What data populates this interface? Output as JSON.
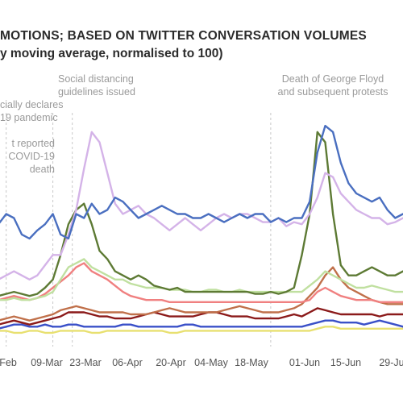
{
  "title": "MOTIONS; BASED ON TWITTER CONVERSATION VOLUMES",
  "subtitle": "y moving average, normalised to 100)",
  "chart_data": {
    "type": "line",
    "xlabel": "",
    "ylabel": "",
    "ylim": [
      0,
      118
    ],
    "grid": false,
    "x_ticks": [
      "Feb",
      "09-Mar",
      "23-Mar",
      "06-Apr",
      "20-Apr",
      "04-May",
      "18-May",
      "01-Jun",
      "15-Jun",
      "29-Ju"
    ],
    "annotations": [
      {
        "lines": [
          "cially declares",
          "19 pandemic"
        ],
        "at": 2
      },
      {
        "lines": [
          "t reported",
          "COVID-19",
          "death"
        ],
        "at": 14
      },
      {
        "lines": [
          "Social distancing",
          "guidelines issued"
        ],
        "at": 19
      },
      {
        "lines": [
          "Death of George Floyd",
          "and subsequent protests"
        ],
        "at": 70
      }
    ],
    "x": [
      0,
      2,
      4,
      6,
      8,
      10,
      12,
      14,
      16,
      18,
      20,
      22,
      24,
      26,
      28,
      30,
      32,
      34,
      36,
      38,
      40,
      42,
      44,
      46,
      48,
      50,
      52,
      54,
      56,
      58,
      60,
      62,
      64,
      66,
      68,
      70,
      72,
      74,
      76,
      78,
      80,
      82,
      84,
      86,
      88,
      90,
      92,
      94,
      96,
      98,
      100,
      102,
      104
    ],
    "series": [
      {
        "color": "#4a6fc0",
        "values": [
          55,
          60,
          58,
          50,
          48,
          52,
          55,
          60,
          50,
          48,
          60,
          58,
          65,
          60,
          62,
          68,
          66,
          62,
          58,
          60,
          62,
          64,
          62,
          60,
          60,
          58,
          58,
          60,
          58,
          56,
          58,
          60,
          58,
          60,
          60,
          56,
          58,
          56,
          58,
          58,
          66,
          90,
          103,
          100,
          85,
          75,
          70,
          68,
          66,
          68,
          62,
          58,
          60
        ]
      },
      {
        "color": "#d4b3e8",
        "values": [
          28,
          30,
          32,
          30,
          28,
          30,
          35,
          40,
          40,
          50,
          62,
          82,
          100,
          95,
          80,
          65,
          60,
          62,
          64,
          60,
          58,
          55,
          52,
          55,
          58,
          55,
          52,
          55,
          58,
          60,
          58,
          60,
          60,
          58,
          56,
          56,
          58,
          54,
          56,
          55,
          60,
          68,
          80,
          78,
          70,
          66,
          62,
          60,
          58,
          58,
          55,
          56,
          58
        ]
      },
      {
        "color": "#5d7a34",
        "values": [
          20,
          21,
          22,
          21,
          20,
          21,
          24,
          28,
          40,
          55,
          62,
          65,
          55,
          42,
          38,
          32,
          30,
          28,
          30,
          28,
          25,
          24,
          23,
          24,
          22,
          22,
          22,
          22,
          22,
          22,
          22,
          22,
          22,
          21,
          21,
          22,
          21,
          22,
          24,
          40,
          60,
          100,
          95,
          60,
          35,
          30,
          30,
          32,
          34,
          32,
          30,
          30,
          32
        ]
      },
      {
        "color": "#c0e0a0",
        "values": [
          18,
          18,
          19,
          18,
          18,
          19,
          20,
          22,
          28,
          34,
          36,
          38,
          34,
          32,
          30,
          28,
          28,
          26,
          25,
          24,
          24,
          24,
          23,
          23,
          23,
          22,
          22,
          23,
          23,
          22,
          22,
          23,
          22,
          22,
          22,
          22,
          22,
          22,
          22,
          22,
          25,
          28,
          32,
          30,
          28,
          26,
          24,
          24,
          25,
          24,
          23,
          22,
          22
        ]
      },
      {
        "color": "#f08080",
        "values": [
          18,
          19,
          20,
          19,
          18,
          19,
          21,
          24,
          27,
          30,
          34,
          36,
          32,
          30,
          28,
          25,
          22,
          20,
          19,
          18,
          18,
          18,
          17,
          17,
          17,
          17,
          17,
          17,
          17,
          17,
          17,
          17,
          17,
          17,
          17,
          17,
          17,
          17,
          17,
          17,
          18,
          22,
          24,
          22,
          20,
          19,
          18,
          18,
          18,
          17,
          17,
          17,
          17
        ]
      },
      {
        "color": "#c0704a",
        "values": [
          8,
          9,
          10,
          9,
          8,
          9,
          10,
          11,
          13,
          14,
          15,
          14,
          13,
          12,
          12,
          12,
          12,
          11,
          11,
          11,
          12,
          13,
          14,
          13,
          12,
          12,
          12,
          12,
          12,
          13,
          14,
          15,
          14,
          13,
          12,
          12,
          12,
          13,
          14,
          16,
          20,
          24,
          30,
          34,
          28,
          24,
          22,
          20,
          18,
          17,
          16,
          16,
          16
        ]
      },
      {
        "color": "#8b1a1a",
        "values": [
          6,
          7,
          8,
          7,
          6,
          7,
          8,
          9,
          10,
          12,
          12,
          12,
          11,
          10,
          10,
          9,
          9,
          9,
          10,
          11,
          12,
          11,
          10,
          10,
          10,
          10,
          11,
          12,
          12,
          11,
          10,
          10,
          10,
          9,
          9,
          9,
          9,
          10,
          11,
          10,
          12,
          14,
          13,
          12,
          11,
          11,
          11,
          11,
          11,
          10,
          11,
          11,
          11
        ]
      },
      {
        "color": "#3a50c8",
        "values": [
          4,
          5,
          6,
          6,
          5,
          5,
          6,
          5,
          5,
          6,
          6,
          5,
          5,
          5,
          5,
          5,
          6,
          6,
          5,
          5,
          5,
          5,
          5,
          5,
          6,
          6,
          5,
          5,
          5,
          5,
          5,
          5,
          5,
          5,
          5,
          5,
          5,
          5,
          5,
          5,
          6,
          7,
          8,
          8,
          7,
          7,
          7,
          6,
          7,
          8,
          7,
          6,
          5
        ]
      },
      {
        "color": "#e8e070",
        "values": [
          3,
          3,
          2,
          2,
          3,
          3,
          2,
          2,
          3,
          3,
          3,
          3,
          2,
          2,
          3,
          3,
          3,
          3,
          3,
          3,
          3,
          3,
          2,
          2,
          3,
          3,
          3,
          3,
          3,
          3,
          3,
          3,
          3,
          3,
          3,
          3,
          3,
          3,
          3,
          3,
          3,
          4,
          5,
          5,
          4,
          4,
          4,
          4,
          4,
          4,
          4,
          4,
          4
        ]
      }
    ]
  }
}
